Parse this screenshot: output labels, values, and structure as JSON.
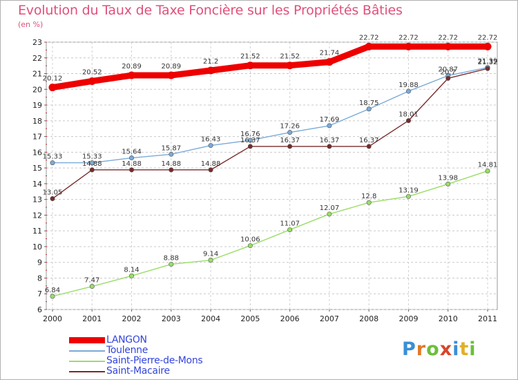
{
  "chart_data": {
    "type": "line",
    "title": "Evolution du Taux de Taxe Foncière sur les Propriétés Bâties",
    "subtitle": "(en %)",
    "x": [
      "2000",
      "2001",
      "2002",
      "2003",
      "2004",
      "2005",
      "2006",
      "2007",
      "2008",
      "2009",
      "2010",
      "2011"
    ],
    "ylim": [
      6,
      23
    ],
    "yticks": [
      6,
      7,
      8,
      9,
      10,
      11,
      12,
      13,
      14,
      15,
      16,
      17,
      18,
      19,
      20,
      21,
      22,
      23
    ],
    "grid": "horizontal dashed",
    "legend_position": "bottom-left",
    "series": [
      {
        "name": "LANGON",
        "color": "#ee0000",
        "values": [
          20.12,
          20.52,
          20.89,
          20.89,
          21.2,
          21.52,
          21.52,
          21.74,
          22.72,
          22.72,
          22.72,
          22.72
        ],
        "labels": [
          "20.12",
          "20.52",
          "20.89",
          "20.89",
          "21.2",
          "21.52",
          "21.52",
          "21.74",
          "22.72",
          "22.72",
          "22.72",
          "22.72"
        ]
      },
      {
        "name": "Toulenne",
        "color": "#7aaad8",
        "values": [
          15.33,
          15.33,
          15.64,
          15.87,
          16.43,
          16.76,
          17.26,
          17.69,
          18.75,
          19.88,
          20.87,
          21.39
        ],
        "labels": [
          "15.33",
          "15.33",
          "15.64",
          "15.87",
          "16.43",
          "16.76",
          "17.26",
          "17.69",
          "18.75",
          "19.88",
          "20.87",
          "21.39"
        ]
      },
      {
        "name": "Saint-Pierre-de-Mons",
        "color": "#99dd66",
        "values": [
          6.84,
          7.47,
          8.14,
          8.88,
          9.14,
          10.06,
          11.07,
          12.07,
          12.8,
          13.19,
          13.98,
          14.81
        ],
        "labels": [
          "6.84",
          "7.47",
          "8.14",
          "8.88",
          "9.14",
          "10.06",
          "11.07",
          "12.07",
          "12.8",
          "13.19",
          "13.98",
          "14.81"
        ]
      },
      {
        "name": "Saint-Macaire",
        "color": "#7a2a2a",
        "values": [
          13.05,
          14.88,
          14.88,
          14.88,
          14.88,
          16.37,
          16.37,
          16.37,
          16.37,
          18.01,
          20.7,
          21.32
        ],
        "labels": [
          "13.05",
          "14.88",
          "14.88",
          "14.88",
          "14.88",
          "16.37",
          "16.37",
          "16.37",
          "16.37",
          "18.01",
          "20.7",
          "21.32"
        ]
      }
    ]
  },
  "logo": {
    "letters": [
      "P",
      "r",
      "o",
      "x",
      "i",
      "t",
      "i"
    ],
    "colors": [
      "#3a8fd6",
      "#e07a2a",
      "#6cbf3a",
      "#d8462a",
      "#3a8fd6",
      "#e0b02a",
      "#6cbf3a"
    ]
  }
}
